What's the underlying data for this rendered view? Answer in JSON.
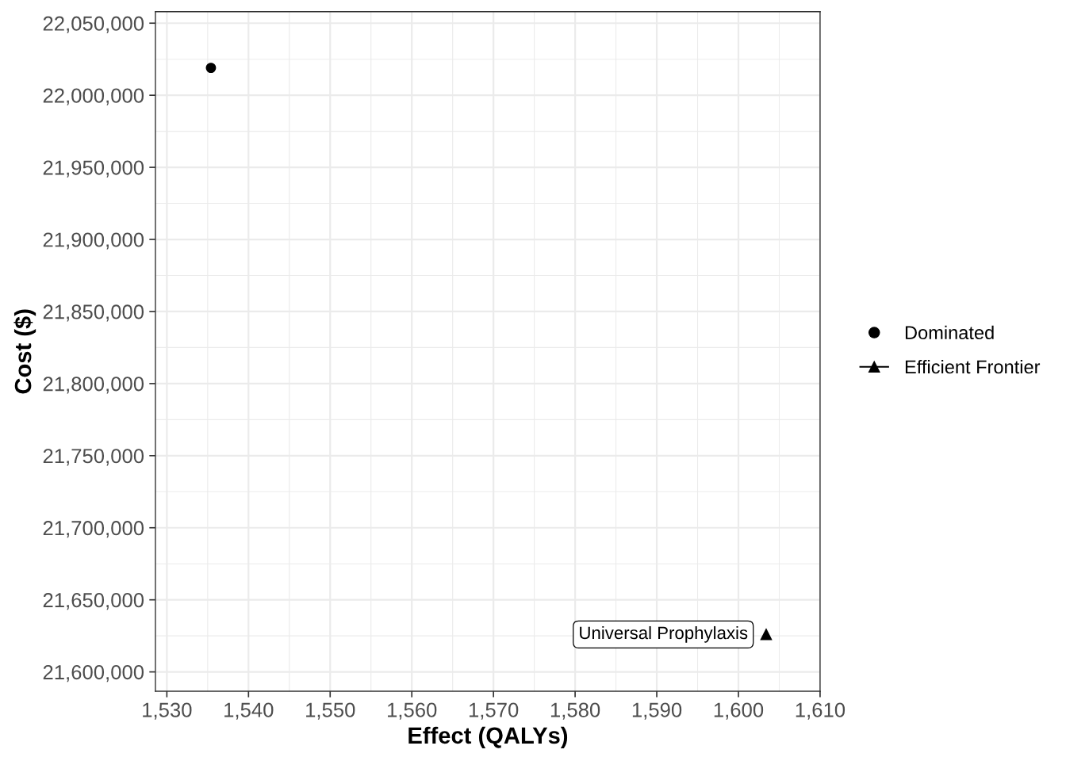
{
  "chart_data": {
    "type": "scatter",
    "xlabel": "Effect (QALYs)",
    "ylabel": "Cost ($)",
    "series": [
      {
        "name": "Dominated",
        "marker": "circle",
        "color": "#000000",
        "x": [
          1535.4
        ],
        "values": [
          22019000
        ]
      },
      {
        "name": "Efficient Frontier",
        "type": "line",
        "marker": "triangle",
        "color": "#000000",
        "x": [
          1603.4
        ],
        "values": [
          21626000
        ]
      }
    ],
    "annotations": [
      {
        "text": "Universal Prophylaxis",
        "x": 1603.4,
        "y": 21626000
      }
    ],
    "xlim": [
      1528.6,
      1610
    ],
    "ylim": [
      21586600,
      22058000
    ],
    "xticks": [
      {
        "value": 1530,
        "label": "1,530"
      },
      {
        "value": 1540,
        "label": "1,540"
      },
      {
        "value": 1550,
        "label": "1,550"
      },
      {
        "value": 1560,
        "label": "1,560"
      },
      {
        "value": 1570,
        "label": "1,570"
      },
      {
        "value": 1580,
        "label": "1,580"
      },
      {
        "value": 1590,
        "label": "1,590"
      },
      {
        "value": 1600,
        "label": "1,600"
      },
      {
        "value": 1610,
        "label": "1,610"
      }
    ],
    "yticks": [
      {
        "value": 21600000,
        "label": "21,600,000"
      },
      {
        "value": 21650000,
        "label": "21,650,000"
      },
      {
        "value": 21700000,
        "label": "21,700,000"
      },
      {
        "value": 21750000,
        "label": "21,750,000"
      },
      {
        "value": 21800000,
        "label": "21,800,000"
      },
      {
        "value": 21850000,
        "label": "21,850,000"
      },
      {
        "value": 21900000,
        "label": "21,900,000"
      },
      {
        "value": 21950000,
        "label": "21,950,000"
      },
      {
        "value": 22000000,
        "label": "22,000,000"
      },
      {
        "value": 22050000,
        "label": "22,050,000"
      }
    ],
    "grid": true,
    "legend": "right"
  }
}
